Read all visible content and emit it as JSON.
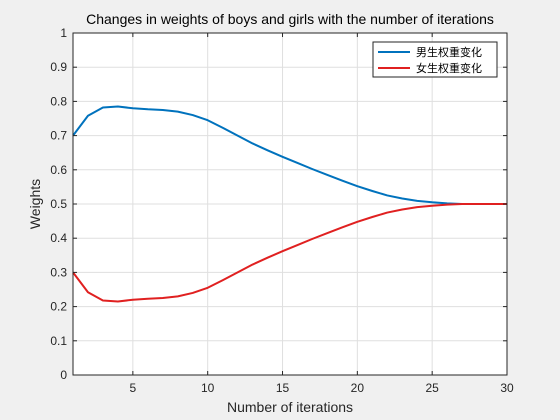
{
  "chart_data": {
    "type": "line",
    "title": "Changes in weights of boys and girls with the number of iterations",
    "xlabel": "Number of iterations",
    "ylabel": "Weights",
    "xlim": [
      1,
      30
    ],
    "ylim": [
      0,
      1
    ],
    "xticks": [
      5,
      10,
      15,
      20,
      25,
      30
    ],
    "yticks": [
      0,
      0.1,
      0.2,
      0.3,
      0.4,
      0.5,
      0.6,
      0.7,
      0.8,
      0.9,
      1
    ],
    "xtick_labels": [
      "5",
      "10",
      "15",
      "20",
      "25",
      "30"
    ],
    "ytick_labels": [
      "0",
      "0.1",
      "0.2",
      "0.3",
      "0.4",
      "0.5",
      "0.6",
      "0.7",
      "0.8",
      "0.9",
      "1"
    ],
    "grid": true,
    "legend_position": "top-right",
    "x": [
      1,
      2,
      3,
      4,
      5,
      6,
      7,
      8,
      9,
      10,
      11,
      12,
      13,
      14,
      15,
      16,
      17,
      18,
      19,
      20,
      21,
      22,
      23,
      24,
      25,
      26,
      27,
      28,
      29,
      30
    ],
    "series": [
      {
        "name": "男生权重变化",
        "color": "#0072BD",
        "values": [
          0.7,
          0.758,
          0.782,
          0.785,
          0.78,
          0.777,
          0.775,
          0.77,
          0.76,
          0.745,
          0.723,
          0.7,
          0.677,
          0.657,
          0.638,
          0.62,
          0.602,
          0.585,
          0.568,
          0.552,
          0.538,
          0.525,
          0.516,
          0.509,
          0.505,
          0.502,
          0.5,
          0.5,
          0.5,
          0.5
        ]
      },
      {
        "name": "女生权重变化",
        "color": "#D95319",
        "values": [
          0.3,
          0.242,
          0.218,
          0.215,
          0.22,
          0.223,
          0.225,
          0.23,
          0.24,
          0.255,
          0.277,
          0.3,
          0.323,
          0.343,
          0.362,
          0.38,
          0.398,
          0.415,
          0.432,
          0.448,
          0.462,
          0.475,
          0.484,
          0.491,
          0.495,
          0.498,
          0.5,
          0.5,
          0.5,
          0.5
        ]
      }
    ]
  }
}
